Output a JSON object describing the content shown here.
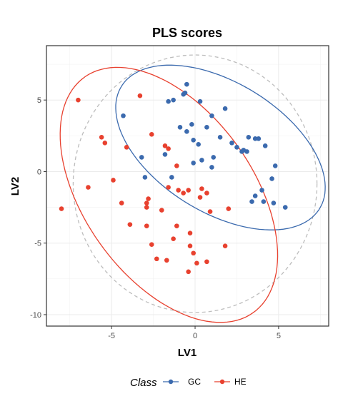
{
  "chart_data": {
    "type": "scatter",
    "title": "PLS scores",
    "xlabel": "LV1",
    "ylabel": "LV2",
    "xlim": [
      -8.9,
      8.0
    ],
    "ylim": [
      -10.8,
      8.8
    ],
    "x_ticks": [
      -5,
      0,
      5
    ],
    "y_ticks": [
      -10,
      -5,
      0,
      5
    ],
    "x_tick_labels": [
      "-5",
      "0",
      "5"
    ],
    "y_tick_labels": [
      "-10",
      "-5",
      "0",
      "5"
    ],
    "grid": true,
    "legend": {
      "title": "Class",
      "position": "bottom"
    },
    "colors": {
      "GC": "#3b6aae",
      "HE": "#e8412f",
      "overall_ellipse": "#bdbdbd"
    },
    "series": [
      {
        "name": "GC",
        "points": [
          [
            -0.5,
            6.1
          ],
          [
            -0.7,
            5.4
          ],
          [
            -0.6,
            5.5
          ],
          [
            -1.3,
            5.0
          ],
          [
            -1.6,
            4.9
          ],
          [
            0.3,
            4.9
          ],
          [
            1.8,
            4.4
          ],
          [
            1.0,
            3.9
          ],
          [
            -4.3,
            3.9
          ],
          [
            -0.2,
            3.3
          ],
          [
            -0.9,
            3.1
          ],
          [
            0.7,
            3.1
          ],
          [
            -0.5,
            2.8
          ],
          [
            1.5,
            2.4
          ],
          [
            3.2,
            2.4
          ],
          [
            3.6,
            2.3
          ],
          [
            3.8,
            2.3
          ],
          [
            -0.1,
            2.2
          ],
          [
            2.2,
            2.0
          ],
          [
            4.2,
            1.8
          ],
          [
            0.2,
            1.9
          ],
          [
            2.5,
            1.7
          ],
          [
            2.8,
            1.4
          ],
          [
            2.9,
            1.5
          ],
          [
            3.1,
            1.4
          ],
          [
            -1.8,
            1.2
          ],
          [
            -3.2,
            1.0
          ],
          [
            1.1,
            1.0
          ],
          [
            0.4,
            0.8
          ],
          [
            -0.1,
            0.6
          ],
          [
            4.8,
            0.4
          ],
          [
            1.0,
            0.3
          ],
          [
            -3.0,
            -0.4
          ],
          [
            -1.4,
            -0.4
          ],
          [
            4.6,
            -0.5
          ],
          [
            3.6,
            -1.7
          ],
          [
            4.0,
            -1.3
          ],
          [
            3.4,
            -2.1
          ],
          [
            4.1,
            -2.1
          ],
          [
            4.7,
            -2.2
          ],
          [
            5.4,
            -2.5
          ]
        ]
      },
      {
        "name": "HE",
        "points": [
          [
            -7.0,
            5.0
          ],
          [
            -3.3,
            5.3
          ],
          [
            -5.6,
            2.4
          ],
          [
            -5.4,
            2.0
          ],
          [
            -2.6,
            2.6
          ],
          [
            -4.1,
            1.7
          ],
          [
            -1.8,
            1.8
          ],
          [
            -1.6,
            1.6
          ],
          [
            -6.4,
            -1.1
          ],
          [
            -4.9,
            -0.6
          ],
          [
            -1.1,
            0.4
          ],
          [
            -1.6,
            -1.1
          ],
          [
            -1.0,
            -1.3
          ],
          [
            -0.7,
            -1.5
          ],
          [
            -0.4,
            -1.3
          ],
          [
            0.4,
            -1.2
          ],
          [
            0.7,
            -1.5
          ],
          [
            0.3,
            -1.8
          ],
          [
            -2.8,
            -1.9
          ],
          [
            -2.9,
            -2.2
          ],
          [
            -2.9,
            -2.5
          ],
          [
            -4.4,
            -2.2
          ],
          [
            -8.0,
            -2.6
          ],
          [
            2.0,
            -2.6
          ],
          [
            -2.0,
            -2.7
          ],
          [
            0.9,
            -2.8
          ],
          [
            -3.9,
            -3.7
          ],
          [
            -2.9,
            -3.8
          ],
          [
            -1.1,
            -3.8
          ],
          [
            -0.3,
            -4.3
          ],
          [
            -1.3,
            -4.7
          ],
          [
            -2.6,
            -5.1
          ],
          [
            -0.3,
            -5.2
          ],
          [
            1.8,
            -5.2
          ],
          [
            -0.1,
            -5.7
          ],
          [
            -2.3,
            -6.1
          ],
          [
            -1.7,
            -6.2
          ],
          [
            0.1,
            -6.4
          ],
          [
            0.7,
            -6.3
          ],
          [
            -0.4,
            -7.0
          ]
        ]
      }
    ],
    "ellipses": [
      {
        "series": "overall",
        "center": [
          0.0,
          -0.85
        ],
        "semi_axes": [
          7.3,
          9.0
        ],
        "angle_deg": 0,
        "style": "dashed"
      },
      {
        "series": "GC",
        "center": [
          1.52,
          1.68
        ],
        "semi_axes": [
          7.35,
          4.3
        ],
        "angle_deg": -40,
        "style": "solid"
      },
      {
        "series": "HE",
        "center": [
          -1.57,
          -1.63
        ],
        "semi_axes": [
          9.7,
          5.27
        ],
        "angle_deg": -62,
        "style": "solid"
      }
    ]
  }
}
